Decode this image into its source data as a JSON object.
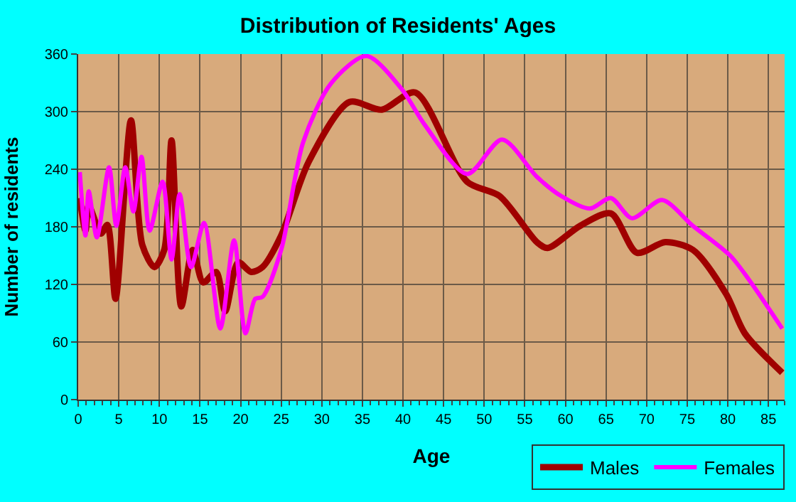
{
  "chart_data": {
    "type": "line",
    "title": "Distribution of Residents' Ages",
    "xlabel": "Age",
    "ylabel": "Number of residents",
    "xlim": [
      0,
      87
    ],
    "xticks": [
      0,
      5,
      10,
      15,
      20,
      25,
      30,
      35,
      40,
      45,
      50,
      55,
      60,
      65,
      70,
      75,
      80,
      85
    ],
    "ylim": [
      0,
      360
    ],
    "yticks": [
      0,
      60,
      120,
      180,
      240,
      300,
      360
    ],
    "grid": true,
    "legend": "bottom right",
    "marker": "none",
    "line_style": "solid",
    "series": [
      {
        "name": "Males",
        "color": "#a00000",
        "x": [
          0.2,
          0.9,
          1.3,
          2.8,
          3.6,
          4.6,
          6.5,
          7.9,
          9.4,
          10.6,
          11.5,
          12.7,
          14.1,
          15.4,
          17,
          18.1,
          19.7,
          21.3,
          22.7,
          25,
          28.4,
          33.4,
          37.4,
          41.5,
          47.9,
          51.9,
          56.5,
          57.8,
          61.8,
          65.6,
          68.8,
          72.3,
          75.7,
          79.8,
          82.1,
          86.7
        ],
        "values": [
          210,
          176,
          202,
          173,
          182,
          105,
          291,
          161,
          138,
          156,
          270,
          97,
          156,
          122,
          133,
          92,
          143,
          133,
          138,
          171,
          248,
          310,
          302,
          320,
          227,
          212,
          164,
          158,
          181,
          194,
          153,
          164,
          156,
          110,
          69,
          28
        ]
      },
      {
        "name": "Females",
        "color": "#ff00ff",
        "x": [
          0.2,
          0.9,
          1.3,
          2.3,
          3.8,
          4.7,
          5.8,
          6.8,
          7.8,
          8.8,
          10.4,
          11.5,
          12.5,
          13.9,
          15.5,
          17.5,
          19.2,
          20.6,
          21.8,
          22.7,
          25,
          27.7,
          31.1,
          35.5,
          39.8,
          42.7,
          47.9,
          52.2,
          56.5,
          59.5,
          63,
          65.6,
          68.2,
          71.9,
          75.7,
          80.3,
          82.6,
          86.7
        ],
        "values": [
          237,
          171,
          217,
          169,
          242,
          181,
          242,
          196,
          253,
          176,
          227,
          146,
          214,
          138,
          184,
          74,
          166,
          69,
          105,
          107,
          156,
          268,
          329,
          358,
          324,
          286,
          235,
          271,
          232,
          212,
          199,
          210,
          189,
          208,
          181,
          150,
          125,
          74
        ]
      }
    ]
  }
}
